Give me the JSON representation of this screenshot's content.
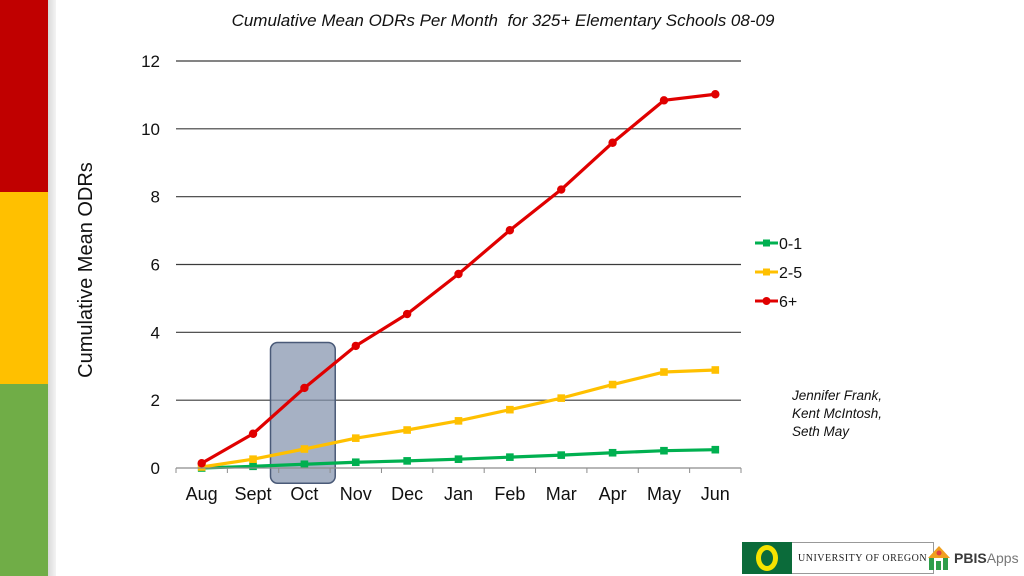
{
  "side_colors": [
    "#c00000",
    "#ffc000",
    "#70ad47"
  ],
  "chart_data": {
    "type": "line",
    "title": "Cumulative Mean ODRs Per Month  for 325+ Elementary Schools 08-09",
    "xlabel": "",
    "ylabel": "Cumulative Mean ODRs",
    "categories": [
      "Aug",
      "Sept",
      "Oct",
      "Nov",
      "Dec",
      "Jan",
      "Feb",
      "Mar",
      "Apr",
      "May",
      "Jun"
    ],
    "ylim": [
      0,
      12
    ],
    "yticks": [
      0,
      2,
      4,
      6,
      8,
      10,
      12
    ],
    "grid": true,
    "legend_position": "right",
    "highlight_category": "Oct",
    "series": [
      {
        "name": "0-1",
        "color": "#00b050",
        "marker": "square",
        "values": [
          0.0,
          0.05,
          0.11,
          0.17,
          0.21,
          0.26,
          0.32,
          0.38,
          0.45,
          0.51,
          0.54
        ]
      },
      {
        "name": "2-5",
        "color": "#ffc000",
        "marker": "square",
        "values": [
          0.03,
          0.26,
          0.56,
          0.88,
          1.12,
          1.39,
          1.72,
          2.06,
          2.46,
          2.83,
          2.89
        ]
      },
      {
        "name": "6+",
        "color": "#e00000",
        "marker": "circle",
        "values": [
          0.14,
          1.01,
          2.36,
          3.6,
          4.54,
          5.72,
          7.01,
          8.21,
          9.59,
          10.84,
          11.02
        ]
      }
    ]
  },
  "credits": [
    "Jennifer Frank,",
    "Kent McIntosh,",
    "Seth May"
  ],
  "logos": {
    "uo_name": "UNIVERSITY OF OREGON",
    "pbis_bold": "PBIS",
    "pbis_light": "Apps"
  }
}
